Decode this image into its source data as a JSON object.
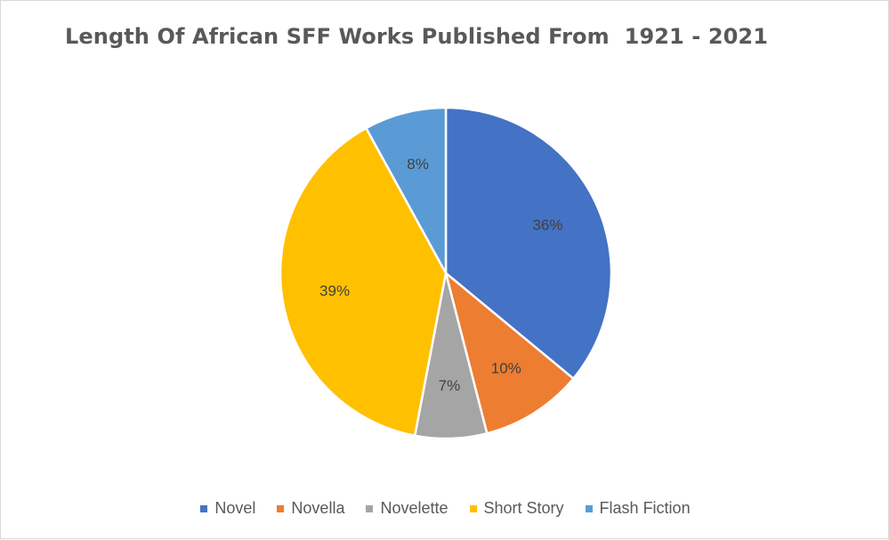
{
  "chart_data": {
    "type": "pie",
    "title": "Length Of African SFF Works Published From  1921 - 2021",
    "categories": [
      "Novel",
      "Novella",
      "Novelette",
      "Short Story",
      "Flash Fiction"
    ],
    "values": [
      36,
      10,
      7,
      39,
      8
    ],
    "data_labels": [
      "36%",
      "10%",
      "7%",
      "39%",
      "8%"
    ],
    "colors": [
      "#4472C4",
      "#ED7D31",
      "#A5A5A5",
      "#FFC000",
      "#5B9BD5"
    ],
    "legend_position": "bottom"
  }
}
